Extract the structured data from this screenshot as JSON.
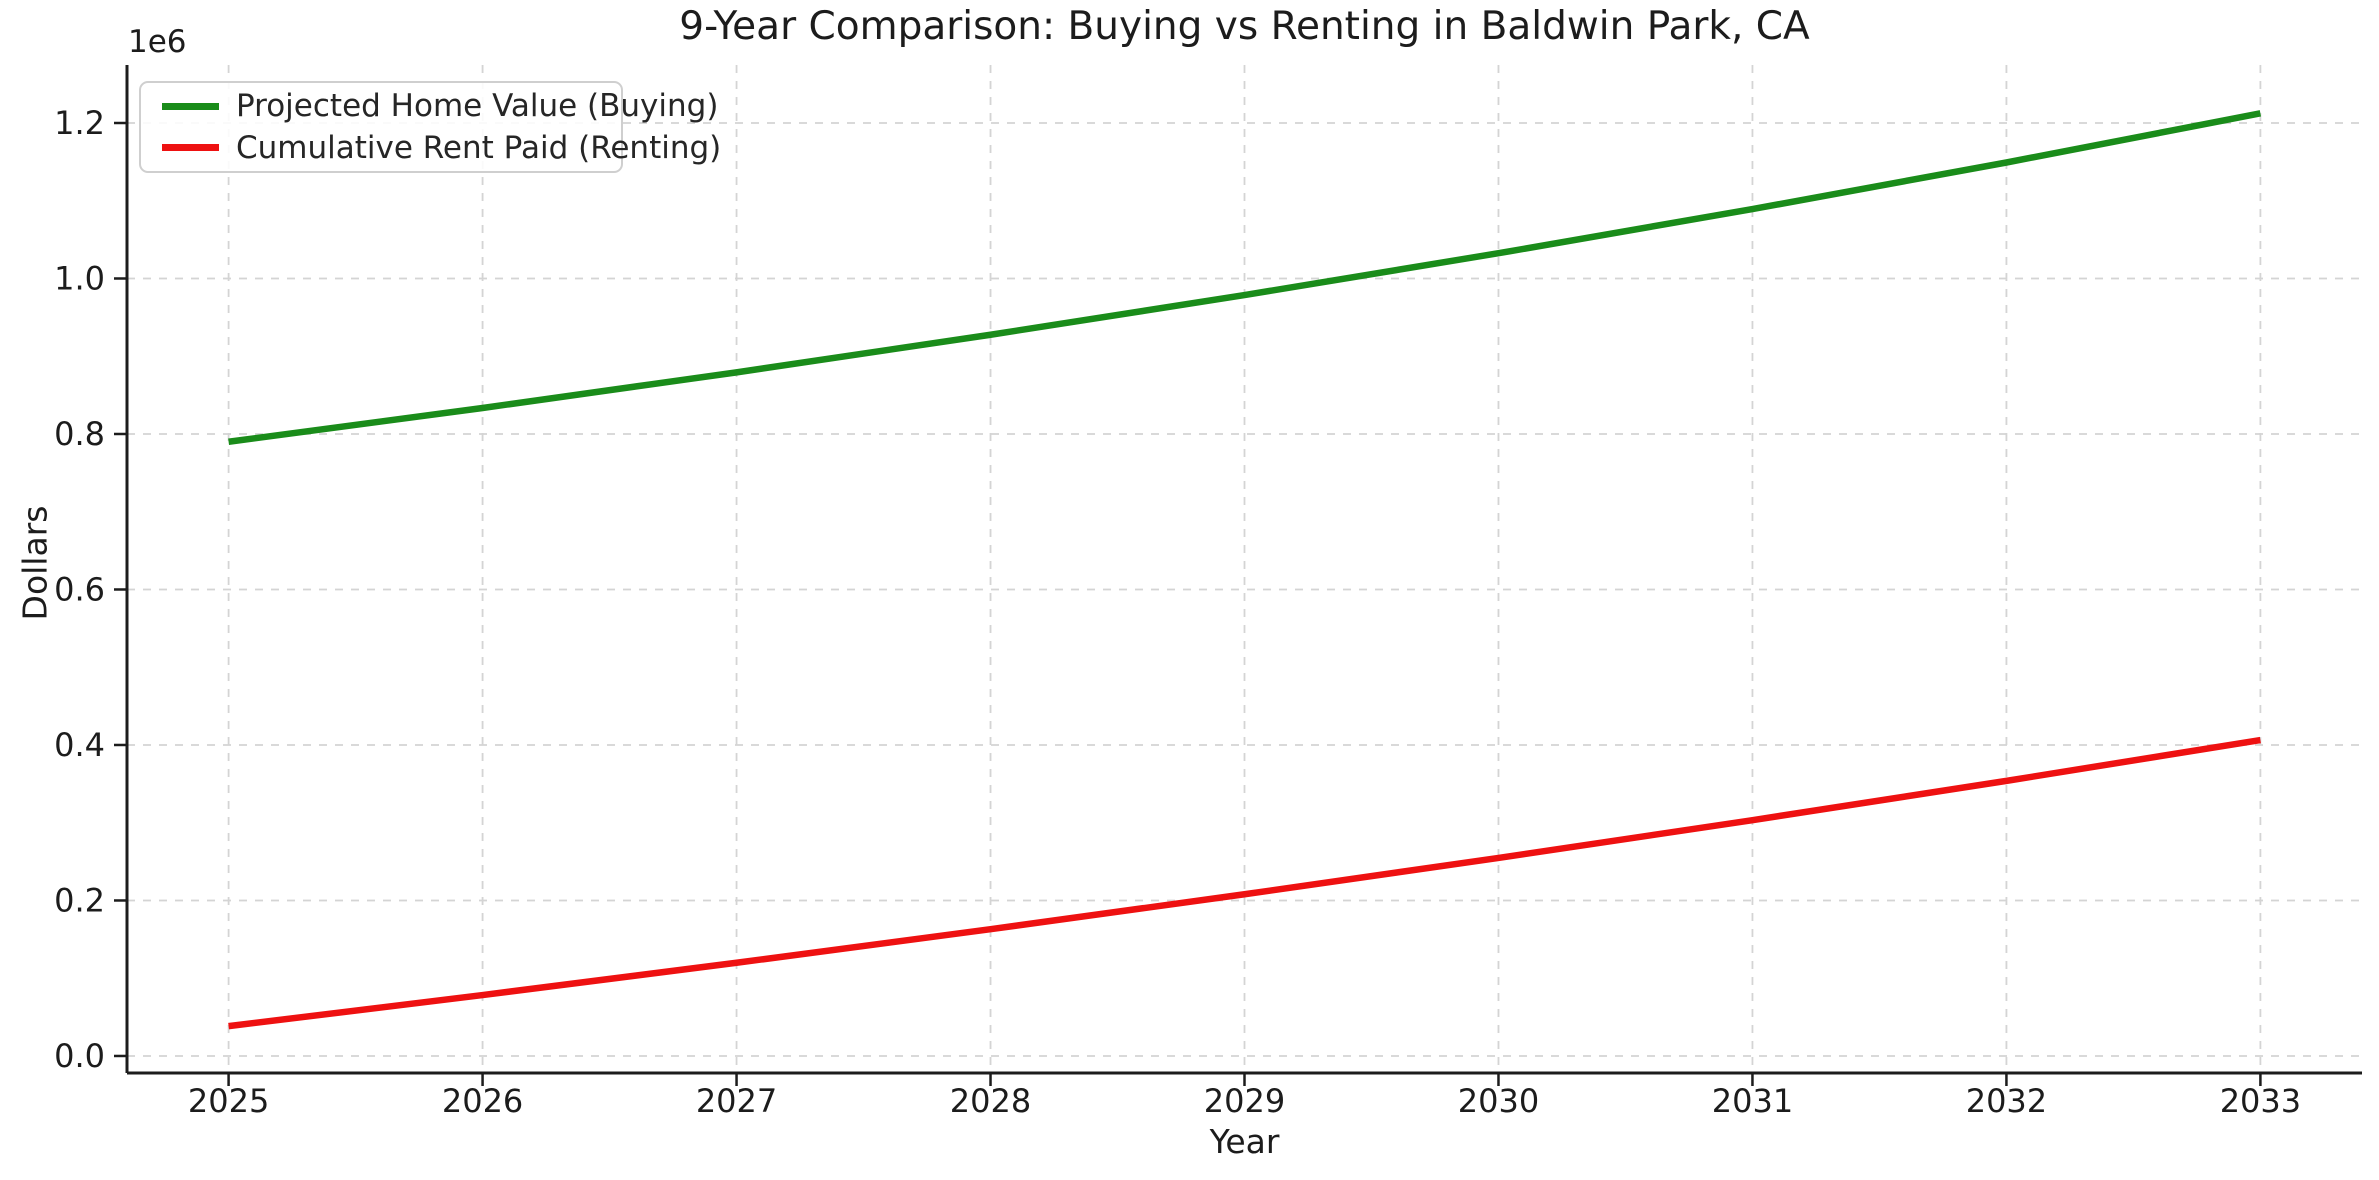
{
  "title": "9-Year Comparison: Buying vs Renting in Baldwin Park, CA",
  "axes": {
    "xlabel": "Year",
    "ylabel": "Dollars",
    "offset_label": "1e6"
  },
  "legend": {
    "position": "upper left",
    "items": [
      {
        "label": "Projected Home Value (Buying)",
        "color": "#1a8c1a"
      },
      {
        "label": "Cumulative Rent Paid (Renting)",
        "color": "#ee1111"
      }
    ]
  },
  "colors": {
    "background": "#ffffff",
    "grid": "#d4d4d4",
    "spine": "#1c1c1c",
    "tick": "#1c1c1c",
    "text": "#1c1c1c",
    "legend_border": "#cfcfcf",
    "buying_line": "#1a8c1a",
    "renting_line": "#ee1111"
  },
  "chart_data": {
    "type": "line",
    "title": "9-Year Comparison: Buying vs Renting in Baldwin Park, CA",
    "xlabel": "Year",
    "ylabel": "Dollars",
    "x": [
      2025,
      2026,
      2027,
      2028,
      2029,
      2030,
      2031,
      2032,
      2033
    ],
    "series": [
      {
        "name": "Projected Home Value (Buying)",
        "color": "#1a8c1a",
        "values": [
          790000,
          833450,
          879290,
          927651,
          978672,
          1032499,
          1089286,
          1149197,
          1212403
        ]
      },
      {
        "name": "Cumulative Rent Paid (Renting)",
        "color": "#ee1111",
        "values": [
          38400,
          78336,
          119869,
          163064,
          207986,
          254705,
          303293,
          353825,
          406378
        ]
      }
    ],
    "xticks": [
      "2025",
      "2026",
      "2027",
      "2028",
      "2029",
      "2030",
      "2031",
      "2032",
      "2033"
    ],
    "ytick_values": [
      0,
      200000,
      400000,
      600000,
      800000,
      1000000,
      1200000
    ],
    "ytick_labels": [
      "0.0",
      "0.2",
      "0.4",
      "0.6",
      "0.8",
      "1.0",
      "1.2"
    ],
    "y_offset_text": "1e6",
    "xlim": [
      2024.6,
      2033.4
    ],
    "ylim": [
      -21900,
      1274600
    ],
    "grid": true,
    "grid_style": "dashed",
    "legend_position": "upper left"
  }
}
